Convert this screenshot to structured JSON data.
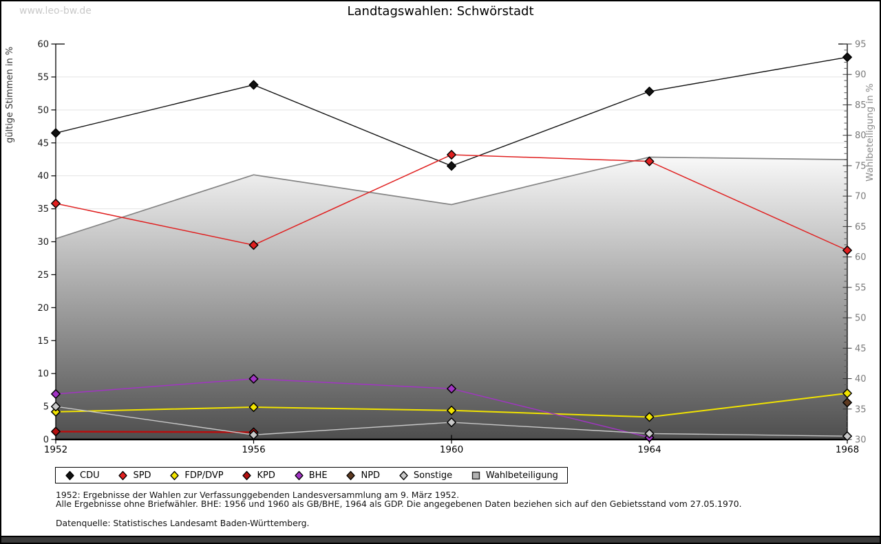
{
  "page": {
    "watermark": "www.leo-bw.de",
    "title": "Landtagswahlen: Schwörstadt"
  },
  "chart_data": {
    "type": "line",
    "title": "Landtagswahlen: Schwörstadt",
    "categories": [
      "1952",
      "1956",
      "1960",
      "1964",
      "1968"
    ],
    "axes": {
      "left": {
        "label": "gültige Stimmen in %",
        "min": 0,
        "max": 60,
        "step": 5
      },
      "right": {
        "label": "Wahlbeteiligung in %",
        "min": 30,
        "max": 95,
        "step": 5,
        "minor_step": 1
      }
    },
    "grid": {
      "show": true,
      "follows": "left-axis",
      "color": "#e3e3e3"
    },
    "legend_position": "bottom",
    "marker": "diamond",
    "series": [
      {
        "name": "CDU",
        "type": "line",
        "axis": "left",
        "color": "#111111",
        "line_width": 1.4,
        "values": [
          46.5,
          53.8,
          41.5,
          52.8,
          58.0
        ]
      },
      {
        "name": "SPD",
        "type": "line",
        "axis": "left",
        "color": "#e02020",
        "line_width": 1.5,
        "values": [
          35.8,
          29.5,
          43.2,
          42.2,
          28.7
        ]
      },
      {
        "name": "FDP/DVP",
        "type": "line",
        "axis": "left",
        "color": "#f2e400",
        "line_width": 2.0,
        "values": [
          4.2,
          4.9,
          4.4,
          3.4,
          7.0
        ]
      },
      {
        "name": "KPD",
        "type": "line",
        "axis": "left",
        "color": "#b31010",
        "line_width": 2.6,
        "values": [
          1.2,
          1.1,
          null,
          null,
          null
        ]
      },
      {
        "name": "BHE",
        "type": "line",
        "axis": "left",
        "color": "#a234c4",
        "line_width": 1.5,
        "values": [
          6.9,
          9.2,
          7.7,
          0.3,
          null
        ]
      },
      {
        "name": "NPD",
        "type": "line",
        "axis": "left",
        "color": "#5e3a21",
        "line_width": 1.5,
        "values": [
          null,
          null,
          null,
          null,
          5.6
        ]
      },
      {
        "name": "Sonstige",
        "type": "line",
        "axis": "left",
        "color": "#c9c9c9",
        "line_width": 1.4,
        "values": [
          5.0,
          0.7,
          2.6,
          0.9,
          0.5
        ]
      },
      {
        "name": "Wahlbeteiligung",
        "type": "area",
        "axis": "right",
        "color": "#848484",
        "fill_top": "#ffffff",
        "fill_bottom": "#4e4e4e",
        "values": [
          63.0,
          73.5,
          68.6,
          76.4,
          76.0
        ]
      }
    ]
  },
  "footnotes": {
    "line1": "1952: Ergebnisse der Wahlen zur Verfassunggebenden Landesversammlung am 9. März 1952.",
    "line2": "Alle Ergebnisse ohne Briefwähler. BHE: 1956 und 1960 als GB/BHE, 1964 als GDP. Die angegebenen Daten beziehen sich auf den Gebietsstand vom 27.05.1970.",
    "source": "Datenquelle: Statistisches Landesamt Baden-Württemberg."
  }
}
